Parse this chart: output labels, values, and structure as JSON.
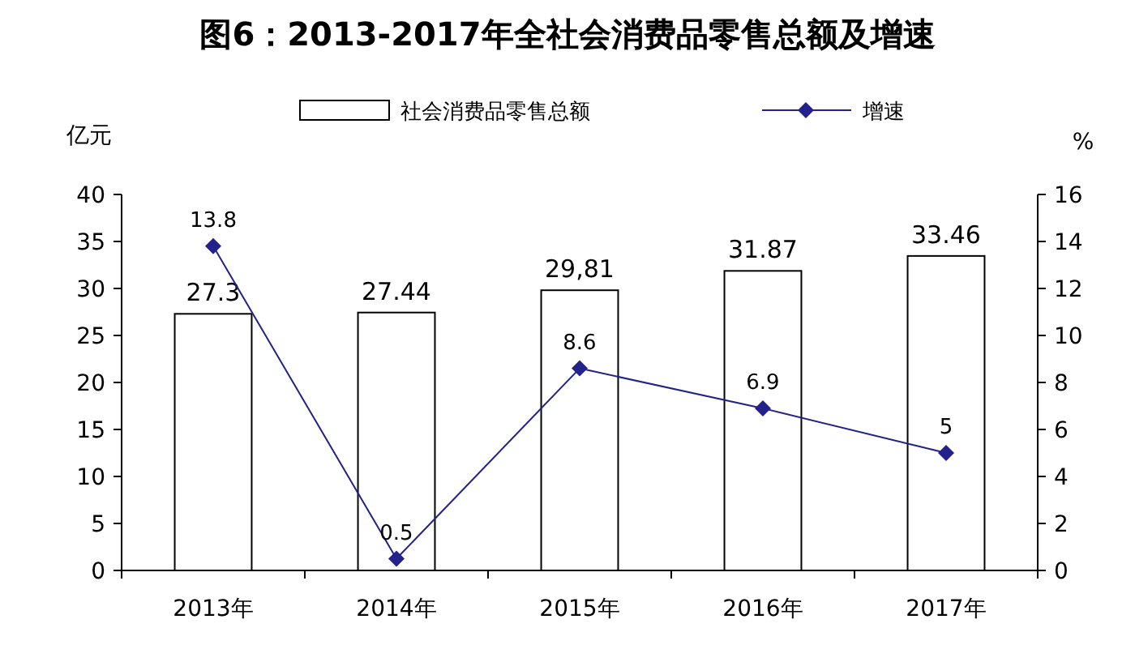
{
  "chart_data": {
    "type": "bar",
    "title": "图6：2013-2017年全社会消费品零售总额及增速",
    "categories": [
      "2013年",
      "2014年",
      "2015年",
      "2016年",
      "2017年"
    ],
    "ylabel": "亿元",
    "y2label": "%",
    "ylim": [
      0,
      40
    ],
    "yticks": [
      0,
      5,
      10,
      15,
      20,
      25,
      30,
      35,
      40
    ],
    "y2lim": [
      0,
      16
    ],
    "y2ticks": [
      0,
      2,
      4,
      6,
      8,
      10,
      12,
      14,
      16
    ],
    "legend": "top",
    "marker": "diamond",
    "series": [
      {
        "name": "社会消费品零售总额",
        "color": "#ffffff",
        "values": [
          27.3,
          27.44,
          29.81,
          31.87,
          33.46
        ],
        "value_labels": [
          "27.3",
          "27.44",
          "29,81",
          "31.87",
          "33.46"
        ]
      },
      {
        "name": "增速",
        "type": "line",
        "axis": "y2",
        "color": "#22228a",
        "values": [
          13.8,
          0.5,
          8.6,
          6.9,
          5
        ],
        "value_labels": [
          "13.8",
          "0.5",
          "8.6",
          "6.9",
          "5"
        ]
      }
    ]
  }
}
